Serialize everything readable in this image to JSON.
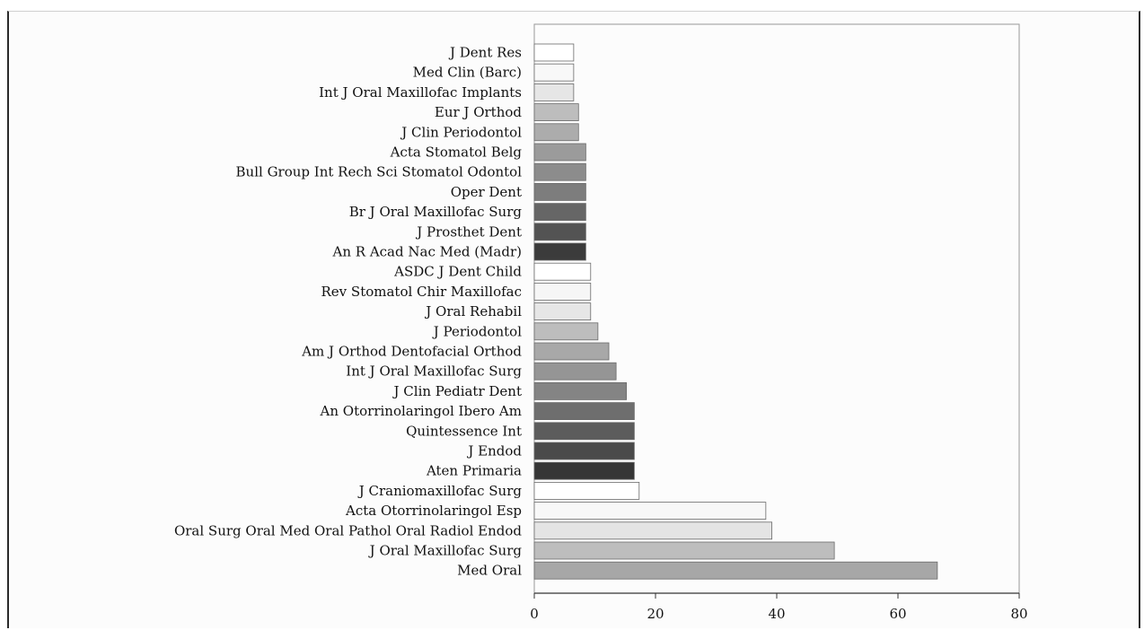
{
  "chart_data": {
    "type": "bar",
    "orientation": "horizontal",
    "title": "",
    "xlabel": "",
    "ylabel": "",
    "xlim": [
      0,
      80
    ],
    "xticks": [
      0,
      20,
      40,
      60,
      80
    ],
    "grid": false,
    "legend": "none",
    "categories": [
      "J Dent Res",
      "Med Clin (Barc)",
      "Int J Oral Maxillofac Implants",
      "Eur J Orthod",
      "J Clin Periodontol",
      "Acta Stomatol Belg",
      "Bull Group Int Rech Sci Stomatol Odontol",
      "Oper Dent",
      "Br J Oral Maxillofac Surg",
      "J Prosthet Dent",
      "An R Acad Nac Med (Madr)",
      "ASDC J Dent Child",
      "Rev Stomatol Chir Maxillofac",
      "J Oral Rehabil",
      "J Periodontol",
      "Am J Orthod Dentofacial Orthod",
      "Int J Oral Maxillofac Surg",
      "J Clin Pediatr Dent",
      "An Otorrinolaringol Ibero Am",
      "Quintessence Int",
      "J Endod",
      "Aten Primaria",
      "J Craniomaxillofac Surg",
      "Acta Otorrinolaringol Esp",
      "Oral Surg Oral Med Oral Pathol Oral Radiol Endod",
      "J Oral Maxillofac Surg",
      "Med Oral"
    ],
    "values": [
      6.5,
      6.5,
      6.5,
      7.3,
      7.3,
      8.5,
      8.5,
      8.5,
      8.5,
      8.5,
      8.5,
      9.3,
      9.3,
      9.3,
      10.5,
      12.3,
      13.5,
      15.2,
      16.5,
      16.5,
      16.5,
      16.5,
      17.3,
      38.2,
      39.2,
      49.5,
      66.5
    ],
    "colors": [
      "#ffffff",
      "#f8f8f8",
      "#e6e6e6",
      "#bdbdbd",
      "#acacac",
      "#9b9b9b",
      "#8c8c8c",
      "#7d7d7d",
      "#666666",
      "#535353",
      "#3b3b3b",
      "#ffffff",
      "#f6f6f6",
      "#e6e6e6",
      "#bdbdbd",
      "#a8a8a8",
      "#959595",
      "#848484",
      "#6e6e6e",
      "#5c5c5c",
      "#4a4a4a",
      "#363636",
      "#ffffff",
      "#f8f8f8",
      "#e4e4e4",
      "#bdbdbd",
      "#a7a7a7"
    ]
  }
}
